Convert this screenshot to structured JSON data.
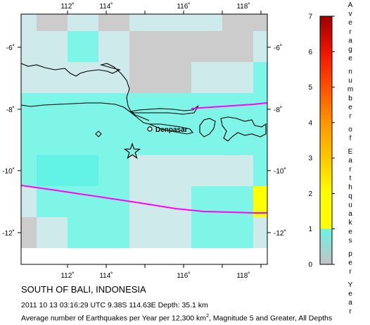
{
  "map": {
    "lon_ticks": [
      "112˚",
      "114˚",
      "116˚",
      "118˚"
    ],
    "lat_ticks": [
      "-6˚",
      "-8˚",
      "-10˚",
      "-12˚"
    ],
    "place_label": "Denpasar",
    "epicenter_marker": "star-icon",
    "cell_levels": [
      [
        1,
        0,
        1,
        0,
        1,
        1,
        1,
        0,
        0
      ],
      [
        1,
        1,
        2,
        1,
        0,
        0,
        0,
        0,
        1
      ],
      [
        1,
        1,
        1,
        1,
        0,
        0,
        1,
        1,
        2
      ],
      [
        2,
        2,
        2,
        2,
        2,
        2,
        2,
        2,
        2
      ],
      [
        2,
        2,
        2,
        2,
        2,
        2,
        2,
        2,
        2
      ],
      [
        2,
        3,
        3,
        2,
        1,
        1,
        1,
        1,
        2
      ],
      [
        1,
        2,
        2,
        2,
        1,
        1,
        2,
        2,
        4
      ],
      [
        0,
        1,
        2,
        2,
        1,
        1,
        2,
        2,
        1
      ]
    ],
    "level_colors": [
      "#cccccc",
      "#cfeaea",
      "#7ff5e8",
      "#63f2e6",
      "#ffff00"
    ]
  },
  "legend": {
    "title": "Average number of Earthquakes per Year",
    "ticks": [
      "0",
      "1",
      "2",
      "3",
      "4",
      "5",
      "6",
      "7"
    ],
    "stops": [
      {
        "value": 0,
        "color": "#c4c4c4"
      },
      {
        "value": 1,
        "color": "#6ff2e4"
      },
      {
        "value": 1,
        "color": "#ffff00"
      },
      {
        "value": 2,
        "color": "#ffff00"
      },
      {
        "value": 3,
        "color": "#ffc800"
      },
      {
        "value": 4,
        "color": "#ff9600"
      },
      {
        "value": 5,
        "color": "#ff5000"
      },
      {
        "value": 6,
        "color": "#ee1400"
      },
      {
        "value": 7,
        "color": "#9a0000"
      }
    ]
  },
  "caption": {
    "title": "SOUTH OF BALI, INDONESIA",
    "event": "2011 10 13 03:16:29 UTC 9.38S 114.63E Depth: 35.1 km",
    "desc_before": "Average number of Earthquakes per Year per 12,300 km",
    "desc_sup": "2",
    "desc_after": ", Magnitude 5 and Greater, All Depths"
  },
  "colors": {
    "plate_boundary": "#ff00ff",
    "coastline": "#000000"
  }
}
